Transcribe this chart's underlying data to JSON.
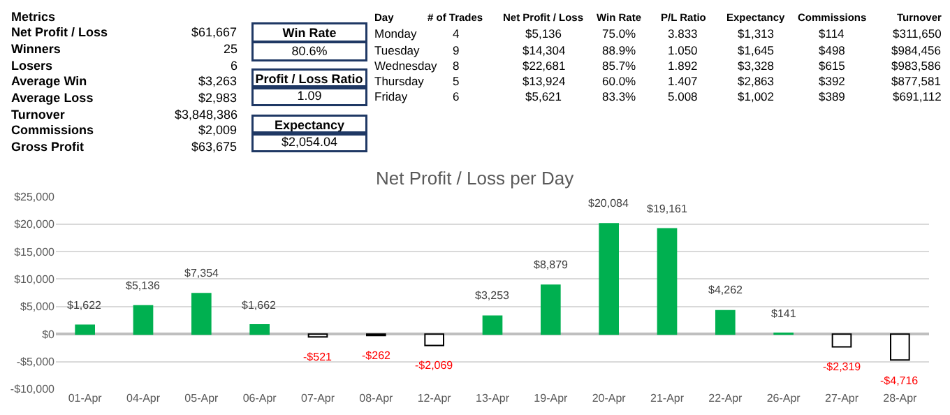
{
  "chart_data": [
    {
      "type": "other",
      "title": "Metrics",
      "categories": [
        "Net Profit / Loss",
        "Winners",
        "Losers",
        "Average Win",
        "Average Loss",
        "Turnover",
        "Commissions",
        "Gross Profit"
      ],
      "value_labels": [
        "$61,667",
        "25",
        "6",
        "$3,263",
        "$2,983",
        "$3,848,386",
        "$2,009",
        "$63,675"
      ]
    },
    {
      "type": "other",
      "title": "Win Rate",
      "value_labels": [
        "80.6%"
      ]
    },
    {
      "type": "other",
      "title": "Profit / Loss Ratio",
      "value_labels": [
        "1.09"
      ]
    },
    {
      "type": "other",
      "title": "Expectancy",
      "value_labels": [
        "$2,054.04"
      ]
    },
    {
      "type": "other",
      "categories": [
        "Day",
        "# of Trades",
        "Net Profit / Loss",
        "Win Rate",
        "P/L Ratio",
        "Expectancy",
        "Commissions",
        "Turnover"
      ],
      "cells": [
        [
          "Monday",
          "4",
          "$5,136",
          "75.0%",
          "3.833",
          "$1,313",
          "$114",
          "$311,650"
        ],
        [
          "Tuesday",
          "9",
          "$14,304",
          "88.9%",
          "1.050",
          "$1,645",
          "$498",
          "$984,456"
        ],
        [
          "Wednesday",
          "8",
          "$22,681",
          "85.7%",
          "1.892",
          "$3,328",
          "$615",
          "$983,586"
        ],
        [
          "Thursday",
          "5",
          "$13,924",
          "60.0%",
          "1.407",
          "$2,863",
          "$392",
          "$877,581"
        ],
        [
          "Friday",
          "6",
          "$5,621",
          "83.3%",
          "5.008",
          "$1,002",
          "$389",
          "$691,112"
        ]
      ]
    },
    {
      "type": "bar",
      "title": "Net Profit / Loss per Day",
      "categories": [
        "01-Apr",
        "04-Apr",
        "05-Apr",
        "06-Apr",
        "07-Apr",
        "08-Apr",
        "12-Apr",
        "13-Apr",
        "19-Apr",
        "20-Apr",
        "21-Apr",
        "22-Apr",
        "26-Apr",
        "27-Apr",
        "28-Apr"
      ],
      "values": [
        1622,
        5136,
        7354,
        1662,
        -521,
        -262,
        -2069,
        3253,
        8879,
        20084,
        19161,
        4262,
        141,
        -2319,
        -4716
      ],
      "colors": [
        "#00b050",
        "#00b050",
        "#00b050",
        "#00b050",
        "#ffffff",
        "#ffffff",
        "#ffffff",
        "#00b050",
        "#00b050",
        "#00b050",
        "#00b050",
        "#00b050",
        "#00b050",
        "#ffffff",
        "#ffffff"
      ],
      "value_labels": [
        "$1,622",
        "$5,136",
        "$7,354",
        "$1,662",
        "-$521",
        "-$262",
        "-$2,069",
        "$3,253",
        "$8,879",
        "$20,084",
        "$19,161",
        "$4,262",
        "$141",
        "-$2,319",
        "-$4,716"
      ],
      "ylim": [
        -10000,
        25000
      ],
      "yticks": [
        {
          "value": -10000,
          "label": "-$10,000"
        },
        {
          "value": -5000,
          "label": "-$5,000"
        },
        {
          "value": 0,
          "label": "$0"
        },
        {
          "value": 5000,
          "label": "$5,000"
        },
        {
          "value": 10000,
          "label": "$10,000"
        },
        {
          "value": 15000,
          "label": "$15,000"
        },
        {
          "value": 20000,
          "label": "$20,000"
        },
        {
          "value": 25000,
          "label": "$25,000"
        }
      ],
      "grid": "y",
      "legend": false
    }
  ]
}
